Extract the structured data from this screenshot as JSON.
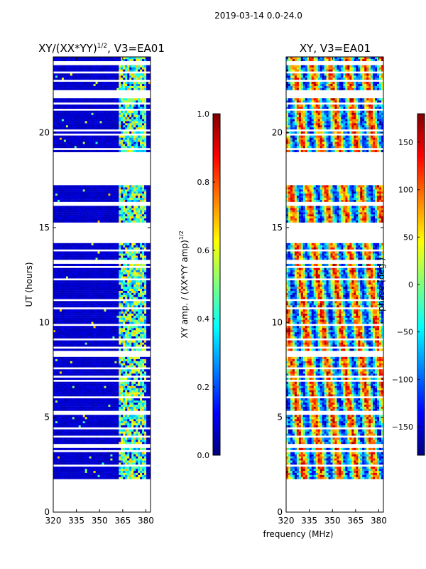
{
  "suptitle": "2019-03-14 0.0-24.0",
  "colors": {
    "jet": [
      "#00007f",
      "#0000ff",
      "#007fff",
      "#00ffff",
      "#7fff7f",
      "#ffff00",
      "#ff7f00",
      "#ff0000",
      "#7f0000"
    ],
    "bg": "#ffffff",
    "axis": "#000000"
  },
  "chart_data": [
    {
      "type": "heatmap",
      "title": "XY/(XX*YY)^1/2, V3=EA01",
      "title_main": "XY/(XX*YY)",
      "title_sup": "1/2",
      "title_rest": ", V3=EA01",
      "xlabel": "",
      "ylabel": "UT (hours)",
      "xlim": [
        320,
        383
      ],
      "ylim": [
        0,
        24
      ],
      "xticks": [
        "320",
        "335",
        "350",
        "365",
        "380"
      ],
      "xtick_values": [
        320,
        335,
        350,
        365,
        380
      ],
      "yticks": [
        "0",
        "5",
        "10",
        "15",
        "20"
      ],
      "ytick_values": [
        0,
        5,
        10,
        15,
        20
      ],
      "colorbar": {
        "label": "XY amp. / (XX*YY amp)^1/2",
        "label_main": "XY amp. / (XX*YY amp)",
        "label_sup": "1/2",
        "range": [
          0.0,
          1.0
        ],
        "ticks": [
          "0.0",
          "0.2",
          "0.4",
          "0.6",
          "0.8",
          "1.0"
        ],
        "tick_values": [
          0.0,
          0.2,
          0.4,
          0.6,
          0.8,
          1.0
        ]
      },
      "data_range_ut": [
        1.7,
        24.0
      ],
      "gaps_ut": [
        [
          17.3,
          19.0
        ],
        [
          14.3,
          15.3
        ]
      ],
      "bright_channel_band_mhz": [
        362,
        380
      ],
      "background_value": 0.05
    },
    {
      "type": "heatmap",
      "title": "XY, V3=EA01",
      "xlabel": "frequency (MHz)",
      "ylabel": "",
      "xlim": [
        320,
        383
      ],
      "ylim": [
        0,
        24
      ],
      "xticks": [
        "320",
        "335",
        "350",
        "365",
        "380"
      ],
      "xtick_values": [
        320,
        335,
        350,
        365,
        380
      ],
      "yticks": [
        "0",
        "5",
        "10",
        "15",
        "20"
      ],
      "ytick_values": [
        0,
        5,
        10,
        15,
        20
      ],
      "colorbar": {
        "label": "phase (deg.)",
        "range": [
          -180,
          180
        ],
        "ticks": [
          "−150",
          "−100",
          "−50",
          "0",
          "50",
          "100",
          "150"
        ],
        "tick_values": [
          -150,
          -100,
          -50,
          0,
          50,
          100,
          150
        ]
      },
      "data_range_ut": [
        1.7,
        24.0
      ],
      "gaps_ut": [
        [
          17.3,
          19.0
        ],
        [
          14.3,
          15.3
        ]
      ]
    }
  ]
}
